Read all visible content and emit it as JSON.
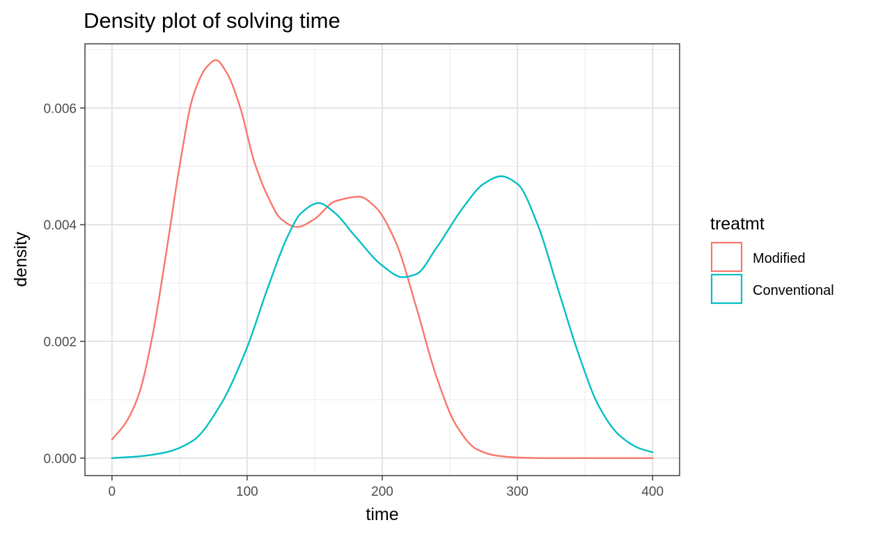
{
  "chart_data": {
    "type": "line",
    "title": "Density plot of solving time",
    "xlabel": "time",
    "ylabel": "density",
    "xlim": [
      -20,
      420
    ],
    "ylim": [
      -0.0003,
      0.0071
    ],
    "x_ticks": [
      0,
      100,
      200,
      300,
      400
    ],
    "x_tick_labels": [
      "0",
      "100",
      "200",
      "300",
      "400"
    ],
    "y_ticks": [
      0,
      0.002,
      0.004,
      0.006
    ],
    "y_tick_labels": [
      "0.000",
      "0.002",
      "0.004",
      "0.006"
    ],
    "x_minor": [
      50,
      150,
      250,
      350
    ],
    "y_minor": [
      0.001,
      0.003,
      0.005,
      0.007
    ],
    "grid": true,
    "legend": {
      "title": "treatmt",
      "position": "right",
      "entries": [
        "Modified",
        "Conventional"
      ]
    },
    "series": [
      {
        "name": "Modified",
        "color": "#F8766D",
        "x": [
          0,
          10,
          20,
          30,
          40,
          50,
          60,
          70,
          77,
          85,
          95,
          105,
          115,
          125,
          137,
          150,
          165,
          183,
          195,
          210,
          225,
          240,
          255,
          270,
          285,
          300,
          320,
          350,
          380,
          400
        ],
        "y": [
          0.00032,
          0.0006,
          0.0011,
          0.0021,
          0.0035,
          0.005,
          0.0062,
          0.0067,
          0.00682,
          0.0066,
          0.006,
          0.0051,
          0.0045,
          0.0041,
          0.00396,
          0.0041,
          0.0044,
          0.00448,
          0.0043,
          0.0037,
          0.0026,
          0.0014,
          0.00055,
          0.00015,
          4e-05,
          1e-05,
          0.0,
          0.0,
          0.0,
          0.0
        ]
      },
      {
        "name": "Conventional",
        "color": "#00BFC4",
        "x": [
          0,
          20,
          40,
          60,
          80,
          100,
          115,
          130,
          140,
          153,
          165,
          180,
          200,
          215,
          225,
          240,
          260,
          275,
          288,
          300,
          315,
          330,
          345,
          360,
          375,
          390,
          400
        ],
        "y": [
          0.0,
          3e-05,
          0.0001,
          0.0003,
          0.0009,
          0.0019,
          0.0029,
          0.0038,
          0.0042,
          0.00437,
          0.0042,
          0.0038,
          0.0033,
          0.0031,
          0.00315,
          0.0036,
          0.0043,
          0.0047,
          0.00483,
          0.0047,
          0.004,
          0.0029,
          0.0018,
          0.0009,
          0.0004,
          0.00017,
          0.0001
        ]
      }
    ]
  }
}
